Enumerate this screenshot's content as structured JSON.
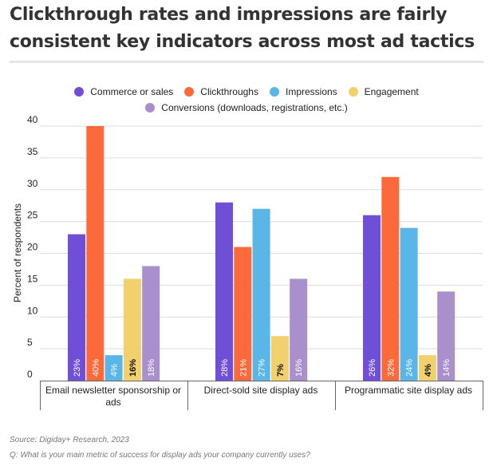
{
  "title": "Clickthrough rates and impressions are fairly consistent key indicators across most ad tactics",
  "footer": {
    "source": "Source: Digiday+ Research, 2023",
    "question": "Q: What is your main metric of success for display ads your company currently uses?"
  },
  "chart_data": {
    "type": "bar",
    "ylabel": "Percent of respondents",
    "ylim": [
      0,
      40
    ],
    "yticks": [
      0,
      5,
      10,
      15,
      20,
      25,
      30,
      35,
      40
    ],
    "grid": true,
    "legend_position": "top",
    "categories": [
      [
        "Email newsletter sponsorship or",
        "ads"
      ],
      [
        "Direct-sold site display ads"
      ],
      [
        "Programmatic site display ads"
      ]
    ],
    "series": [
      {
        "name": "Commerce or sales",
        "color": "#6f4ed8",
        "values": [
          23,
          28,
          26
        ],
        "labels": [
          "23%",
          "28%",
          "26%"
        ]
      },
      {
        "name": "Clickthroughs",
        "color": "#fc6a3c",
        "values": [
          40,
          21,
          32
        ],
        "labels": [
          "40%",
          "21%",
          "32%"
        ]
      },
      {
        "name": "Impressions",
        "color": "#5bb6e8",
        "values": [
          4,
          27,
          24
        ],
        "labels": [
          "4%",
          "27%",
          "24%"
        ]
      },
      {
        "name": "Engagement",
        "color": "#f2d06d",
        "values": [
          16,
          7,
          4
        ],
        "labels": [
          "16%",
          "7%",
          "4%"
        ]
      },
      {
        "name": "Conversions (downloads, registrations, etc.)",
        "color": "#a98fcc",
        "values": [
          18,
          16,
          14
        ],
        "labels": [
          "18%",
          "16%",
          "14%"
        ]
      }
    ]
  }
}
